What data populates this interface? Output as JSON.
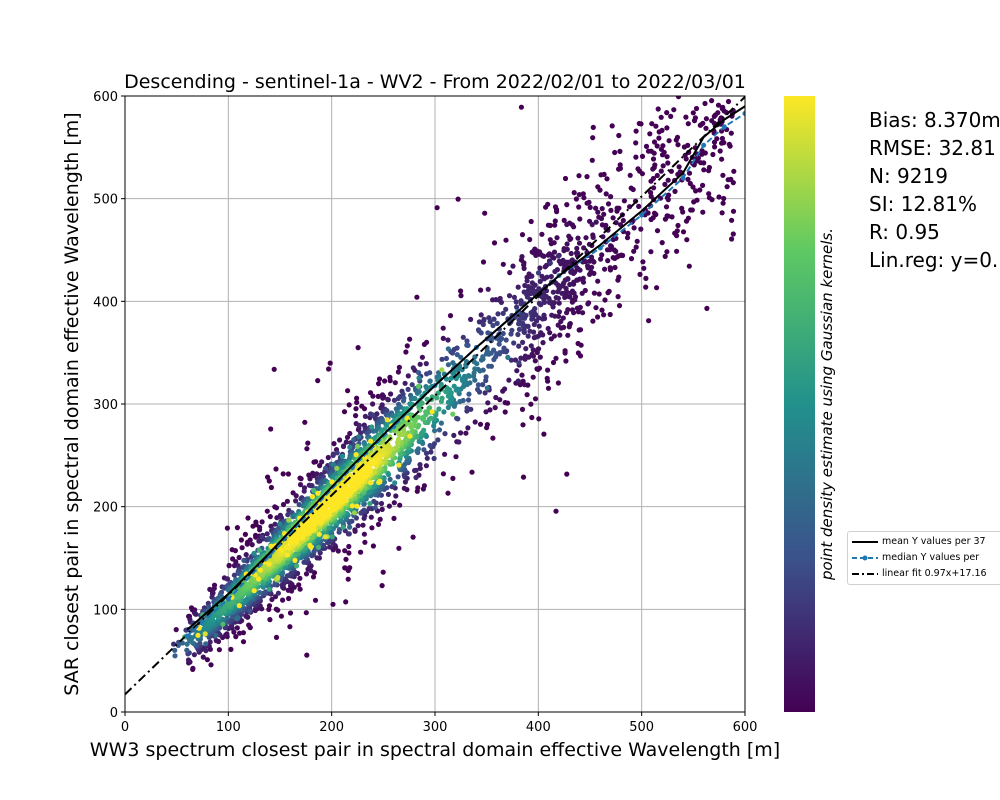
{
  "chart_data": {
    "type": "scatter",
    "title": "Descending - sentinel-1a - WV2 - From 2022/02/01 to 2022/03/01",
    "xlabel": "WW3 spectrum closest pair in spectral domain effective Wavelength [m]",
    "ylabel": "SAR closest pair in spectral domain effective Wavelength [m]",
    "xlim": [
      0,
      600
    ],
    "ylim": [
      0,
      600
    ],
    "xticks": [
      0,
      100,
      200,
      300,
      400,
      500,
      600
    ],
    "yticks": [
      0,
      100,
      200,
      300,
      400,
      500,
      600
    ],
    "grid": true,
    "colorbar_label": "point density estimate using Gaussian kernels.",
    "colormap": [
      "#440154",
      "#3b528b",
      "#21918c",
      "#5ec962",
      "#fde725"
    ],
    "stats": {
      "bias": "Bias: 8.370m",
      "rmse": "RMSE: 32.81",
      "n": "N: 9219",
      "si": "SI: 12.81%",
      "r": "R: 0.95",
      "linreg": "Lin.reg: y=0."
    },
    "legend": {
      "placement": "right-outside",
      "entries": [
        {
          "label": "mean Y values per 37",
          "color": "#000000",
          "style": "solid"
        },
        {
          "label": "median Y values per",
          "color": "#1f77b4",
          "style": "dashed-marker"
        },
        {
          "label": "linear fit 0.97x+17.16",
          "color": "#000000",
          "style": "dashdot"
        }
      ]
    },
    "linear_fit": {
      "slope": 0.97,
      "intercept": 17.16
    },
    "mean_curve": {
      "x": [
        60,
        100,
        140,
        180,
        220,
        260,
        300,
        340,
        380,
        420,
        460,
        500,
        540,
        560,
        580,
        600
      ],
      "y": [
        80,
        115,
        155,
        198,
        240,
        280,
        318,
        355,
        390,
        425,
        455,
        488,
        525,
        560,
        577,
        590
      ]
    },
    "median_curve": {
      "x": [
        60,
        100,
        140,
        180,
        220,
        260,
        300,
        340,
        380,
        420,
        460,
        500,
        540,
        560,
        580,
        600
      ],
      "y": [
        74,
        110,
        152,
        196,
        238,
        278,
        318,
        355,
        390,
        425,
        452,
        484,
        520,
        552,
        570,
        583
      ]
    },
    "density_model": {
      "center_slope": 0.97,
      "center_intercept": 17.16,
      "core_x_range": [
        110,
        300
      ],
      "n_points": 9219
    }
  }
}
